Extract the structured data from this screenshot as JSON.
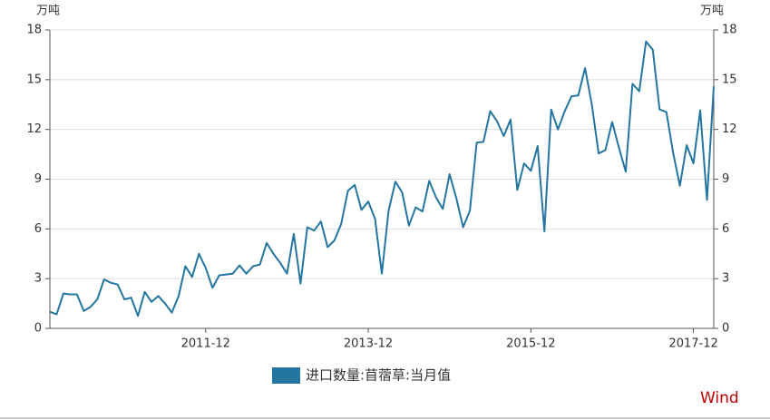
{
  "chart_data": {
    "type": "line",
    "ylabel": "万吨",
    "y2label": "万吨",
    "source": "Wind",
    "categories": [
      null,
      null,
      null,
      null,
      null,
      null,
      null,
      null,
      null,
      null,
      null,
      null,
      null,
      null,
      null,
      null,
      null,
      null,
      null,
      null,
      null,
      null,
      null,
      "2011-12",
      null,
      null,
      null,
      null,
      null,
      null,
      null,
      null,
      null,
      null,
      null,
      null,
      null,
      null,
      null,
      null,
      null,
      null,
      null,
      null,
      null,
      null,
      null,
      "2013-12",
      null,
      null,
      null,
      null,
      null,
      null,
      null,
      null,
      null,
      null,
      null,
      null,
      null,
      null,
      null,
      null,
      null,
      null,
      null,
      null,
      null,
      null,
      null,
      "2015-12",
      null,
      null,
      null,
      null,
      null,
      null,
      null,
      null,
      null,
      null,
      null,
      null,
      null,
      null,
      null,
      null,
      null,
      null,
      null,
      null,
      null,
      null,
      null,
      "2017-12",
      null,
      null,
      null
    ],
    "series": [
      {
        "name": "进口数量:苜蓿草:当月值",
        "color": "#2475a0",
        "values": [
          1.0,
          0.85,
          2.1,
          2.05,
          2.05,
          1.05,
          1.3,
          1.75,
          2.95,
          2.75,
          2.65,
          1.75,
          1.85,
          0.75,
          2.2,
          1.6,
          1.95,
          1.5,
          0.95,
          1.95,
          3.75,
          3.1,
          4.5,
          3.65,
          2.45,
          3.2,
          3.25,
          3.3,
          3.8,
          3.3,
          3.75,
          3.85,
          5.15,
          4.5,
          3.95,
          3.3,
          5.7,
          2.7,
          6.1,
          5.9,
          6.45,
          4.9,
          5.3,
          6.3,
          8.3,
          8.65,
          7.15,
          7.65,
          6.6,
          3.3,
          7.1,
          8.85,
          8.2,
          6.2,
          7.3,
          7.05,
          8.9,
          7.9,
          7.2,
          9.3,
          7.85,
          6.1,
          7.1,
          11.2,
          11.25,
          13.1,
          12.5,
          11.6,
          12.6,
          8.35,
          9.95,
          9.5,
          11.0,
          5.85,
          13.2,
          12.0,
          13.1,
          14.0,
          14.05,
          15.7,
          13.5,
          10.55,
          10.75,
          12.45,
          10.9,
          9.45,
          14.75,
          14.3,
          17.3,
          16.8,
          13.2,
          13.05,
          10.6,
          8.6,
          11.05,
          9.95,
          13.15,
          7.75,
          14.6
        ]
      }
    ],
    "ylim": [
      0,
      18
    ],
    "yticks": [
      0,
      3,
      6,
      9,
      12,
      15,
      18
    ],
    "y2lim": [
      0,
      18
    ],
    "y2ticks": [
      0,
      3,
      6,
      9,
      12,
      15,
      18
    ],
    "grid": true
  }
}
